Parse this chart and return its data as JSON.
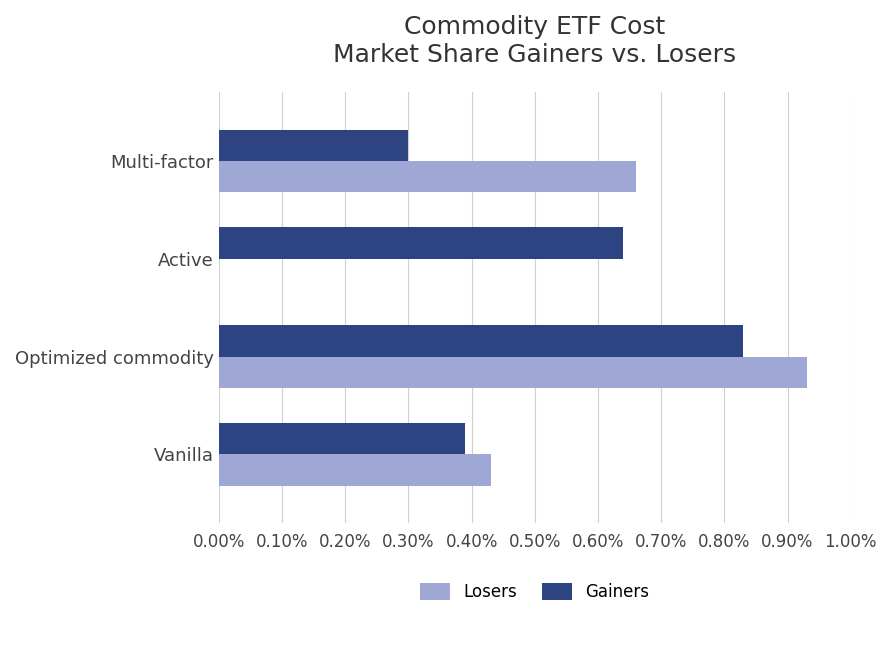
{
  "title_line1": "Commodity ETF Cost",
  "title_line2": "Market Share Gainers vs. Losers",
  "categories": [
    "Multi-factor",
    "Active",
    "Optimized commodity",
    "Vanilla"
  ],
  "losers": [
    0.0066,
    0.0,
    0.0093,
    0.0043
  ],
  "gainers": [
    0.003,
    0.0064,
    0.0083,
    0.0039
  ],
  "loser_color": "#9fa8d5",
  "gainer_color": "#2e4482",
  "background_color": "#ffffff",
  "grid_color": "#d0d0d0",
  "bar_height": 0.32,
  "xlim": [
    0,
    0.01
  ],
  "xtick_values": [
    0.0,
    0.001,
    0.002,
    0.003,
    0.004,
    0.005,
    0.006,
    0.007,
    0.008,
    0.009,
    0.01
  ],
  "title_fontsize": 18,
  "label_fontsize": 13,
  "tick_fontsize": 12,
  "legend_fontsize": 12
}
